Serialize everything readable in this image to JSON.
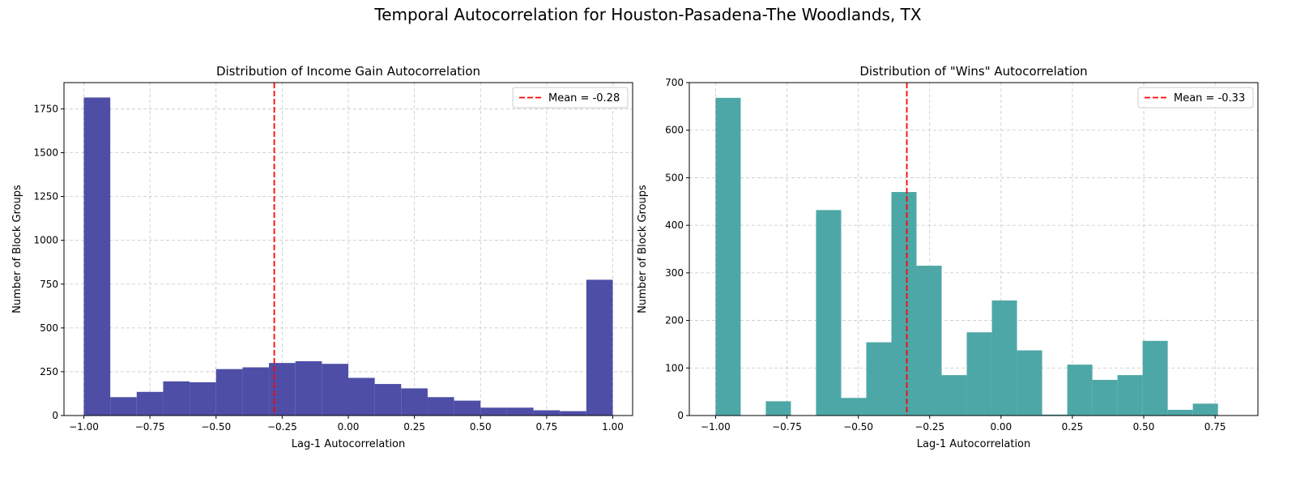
{
  "figure": {
    "suptitle": "Temporal Autocorrelation for Houston-Pasadena-The Woodlands, TX"
  },
  "chart_data": [
    {
      "type": "bar",
      "subtype": "histogram",
      "title": "Distribution of Income Gain Autocorrelation",
      "xlabel": "Lag-1 Autocorrelation",
      "ylabel": "Number of Block Groups",
      "xlim": [
        -1.075,
        1.075
      ],
      "ylim": [
        0,
        1900
      ],
      "xticks": [
        -1.0,
        -0.75,
        -0.5,
        -0.25,
        0.0,
        0.25,
        0.5,
        0.75,
        1.0
      ],
      "xtick_labels": [
        "−1.00",
        "−0.75",
        "−0.50",
        "−0.25",
        "0.00",
        "0.25",
        "0.50",
        "0.75",
        "1.00"
      ],
      "yticks": [
        0,
        250,
        500,
        750,
        1000,
        1250,
        1500,
        1750
      ],
      "ytick_labels": [
        "0",
        "250",
        "500",
        "750",
        "1000",
        "1250",
        "1500",
        "1750"
      ],
      "bin_edges": [
        -1.0,
        -0.9,
        -0.8,
        -0.7,
        -0.6,
        -0.5,
        -0.4,
        -0.3,
        -0.2,
        -0.1,
        0.0,
        0.1,
        0.2,
        0.3,
        0.4,
        0.5,
        0.6,
        0.7,
        0.8,
        0.9,
        1.0
      ],
      "values": [
        1815,
        105,
        135,
        195,
        190,
        265,
        275,
        300,
        310,
        295,
        215,
        180,
        155,
        105,
        85,
        45,
        45,
        30,
        25,
        775
      ],
      "color": "#4c4ca6",
      "mean": -0.28,
      "mean_label": "Mean = -0.28",
      "mean_color": "#ff0000",
      "legend_position": "upper right",
      "grid": true
    },
    {
      "type": "bar",
      "subtype": "histogram",
      "title": "Distribution of \"Wins\" Autocorrelation",
      "xlabel": "Lag-1 Autocorrelation",
      "ylabel": "Number of Block Groups",
      "xlim": [
        -1.092,
        0.9
      ],
      "ylim": [
        0,
        700
      ],
      "xticks": [
        -1.0,
        -0.75,
        -0.5,
        -0.25,
        0.0,
        0.25,
        0.5,
        0.75
      ],
      "xtick_labels": [
        "−1.00",
        "−0.75",
        "−0.50",
        "−0.25",
        "0.00",
        "0.25",
        "0.50",
        "0.75"
      ],
      "yticks": [
        0,
        100,
        200,
        300,
        400,
        500,
        600,
        700
      ],
      "ytick_labels": [
        "0",
        "100",
        "200",
        "300",
        "400",
        "500",
        "600",
        "700"
      ],
      "bin_edges": [
        -1.0,
        -0.912,
        -0.824,
        -0.736,
        -0.648,
        -0.56,
        -0.472,
        -0.384,
        -0.296,
        -0.208,
        -0.12,
        -0.032,
        0.056,
        0.144,
        0.232,
        0.32,
        0.408,
        0.496,
        0.584,
        0.672,
        0.76
      ],
      "values": [
        668,
        0,
        30,
        0,
        432,
        37,
        154,
        470,
        315,
        85,
        175,
        242,
        137,
        2,
        107,
        75,
        85,
        157,
        12,
        25
      ],
      "color": "#4ca6a6",
      "mean": -0.33,
      "mean_label": "Mean = -0.33",
      "mean_color": "#ff0000",
      "legend_position": "upper right",
      "grid": true
    }
  ]
}
